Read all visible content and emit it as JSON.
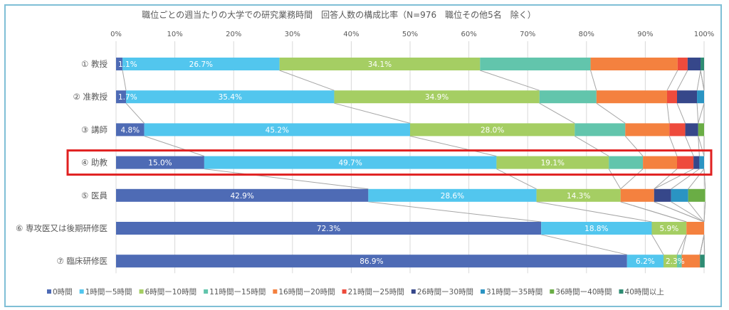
{
  "chart_data": {
    "type": "bar",
    "orientation": "horizontal",
    "stacked": "percent",
    "title": "職位ごとの週当たりの大学での研究業務時間　回答人数の構成比率（N=976　職位その他5名　除く）",
    "xlabel": "",
    "ylabel": "",
    "xlim": [
      0,
      100
    ],
    "x_ticks": [
      "0%",
      "10%",
      "20%",
      "30%",
      "40%",
      "50%",
      "60%",
      "70%",
      "80%",
      "90%",
      "100%"
    ],
    "grid": true,
    "series_lines": true,
    "legend_position": "bottom",
    "highlighted_category": "④ 助教",
    "categories": [
      "① 教授",
      "② 准教授",
      "③ 講師",
      "④ 助教",
      "⑤ 医員",
      "⑥ 専攻医又は後期研修医",
      "⑦ 臨床研修医"
    ],
    "series": [
      {
        "name": "0時間",
        "color": "#4e6bb5",
        "values": [
          1.1,
          1.7,
          4.8,
          15.0,
          42.9,
          72.3,
          86.9
        ],
        "labels": [
          "1.1%",
          "1.7%",
          "4.8%",
          "15.0%",
          "42.9%",
          "72.3%",
          "86.9%"
        ]
      },
      {
        "name": "1時間ー5時間",
        "color": "#52c6ee",
        "values": [
          26.7,
          35.4,
          45.2,
          49.7,
          28.6,
          18.8,
          6.2
        ],
        "labels": [
          "26.7%",
          "35.4%",
          "45.2%",
          "49.7%",
          "28.6%",
          "18.8%",
          "6.2%"
        ]
      },
      {
        "name": "6時間ー10時間",
        "color": "#a5ce63",
        "values": [
          34.1,
          34.9,
          28.0,
          19.1,
          14.3,
          5.9,
          2.3
        ],
        "labels": [
          "34.1%",
          "34.9%",
          "28.0%",
          "19.1%",
          "14.3%",
          "5.9%",
          "2.3%"
        ]
      },
      {
        "name": "11時間ー15時間",
        "color": "#62c5ac",
        "values": [
          18.8,
          9.7,
          8.6,
          5.8,
          0.0,
          0.0,
          0.8
        ],
        "labels": [
          "",
          "",
          "",
          "",
          "",
          "",
          ""
        ]
      },
      {
        "name": "16時間ー20時間",
        "color": "#f4813f",
        "values": [
          14.8,
          12.0,
          7.5,
          5.8,
          5.7,
          3.0,
          3.1
        ],
        "labels": [
          "",
          "",
          "",
          "",
          "",
          "",
          ""
        ]
      },
      {
        "name": "21時間ー25時間",
        "color": "#ee4b3c",
        "values": [
          1.7,
          1.7,
          2.7,
          2.8,
          0.0,
          0.0,
          0.0
        ],
        "labels": [
          "",
          "",
          "",
          "",
          "",
          "",
          ""
        ]
      },
      {
        "name": "26時間ー30時間",
        "color": "#36478a",
        "values": [
          2.2,
          3.4,
          2.2,
          1.0,
          2.9,
          0.0,
          0.0
        ],
        "labels": [
          "",
          "",
          "",
          "",
          "",
          "",
          ""
        ]
      },
      {
        "name": "31時間ー35時間",
        "color": "#2a94c3",
        "values": [
          0.0,
          1.2,
          0.0,
          0.8,
          2.9,
          0.0,
          0.0
        ],
        "labels": [
          "",
          "",
          "",
          "",
          "",
          "",
          ""
        ]
      },
      {
        "name": "36時間ー40時間",
        "color": "#6aad45",
        "values": [
          0.0,
          0.0,
          1.0,
          0.0,
          2.9,
          0.0,
          0.0
        ],
        "labels": [
          "",
          "",
          "",
          "",
          "",
          "",
          ""
        ]
      },
      {
        "name": "40時間以上",
        "color": "#2e8c73",
        "values": [
          0.6,
          0.0,
          0.0,
          0.0,
          0.0,
          0.0,
          0.8
        ],
        "labels": [
          "",
          "",
          "",
          "",
          "",
          "",
          ""
        ]
      }
    ]
  },
  "colors": {
    "frame": "#7fbfd6",
    "highlight": "#e02020",
    "grid": "#d9d9d9",
    "text": "#595959",
    "series_line": "#a6a6a6"
  }
}
